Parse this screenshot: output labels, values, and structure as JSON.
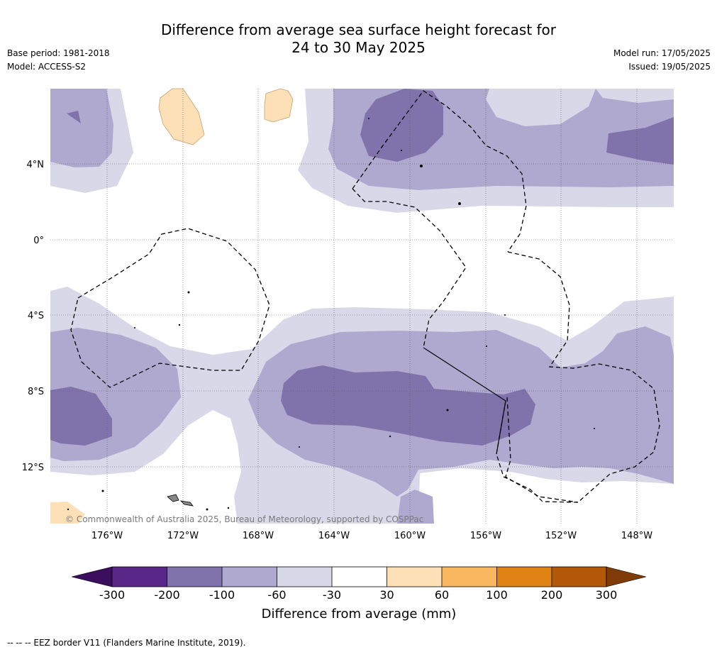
{
  "title": {
    "line1": "Difference from average sea surface height forecast for",
    "line2": "24 to 30 May 2025"
  },
  "info": {
    "base_period": "Base period: 1981-2018",
    "model": "Model: ACCESS-S2",
    "model_run": "Model run: 17/05/2025",
    "issued": "Issued: 19/05/2025"
  },
  "map": {
    "lat_labels": [
      "4°N",
      "0°",
      "4°S",
      "8°S",
      "12°S"
    ],
    "lon_labels": [
      "176°W",
      "172°W",
      "168°W",
      "164°W",
      "160°W",
      "156°W",
      "152°W",
      "148°W"
    ],
    "copyright": "© Commonwealth of Australia 2025, Bureau of Meteorology, supported by COSPPac"
  },
  "colorbar": {
    "title": "Difference from average (mm)",
    "ticks": [
      "-300",
      "-200",
      "-100",
      "-60",
      "-30",
      "30",
      "60",
      "100",
      "200",
      "300"
    ],
    "colors": [
      "#3b0f5e",
      "#582787",
      "#8073ab",
      "#afa9cf",
      "#d9d8e9",
      "#ffffff",
      "#fee0b6",
      "#f9b760",
      "#e08214",
      "#b35806",
      "#7f3b08"
    ]
  },
  "legend": {
    "eez_note": "--  --  -- EEZ border V11 (Flanders Marine Institute, 2019)."
  }
}
